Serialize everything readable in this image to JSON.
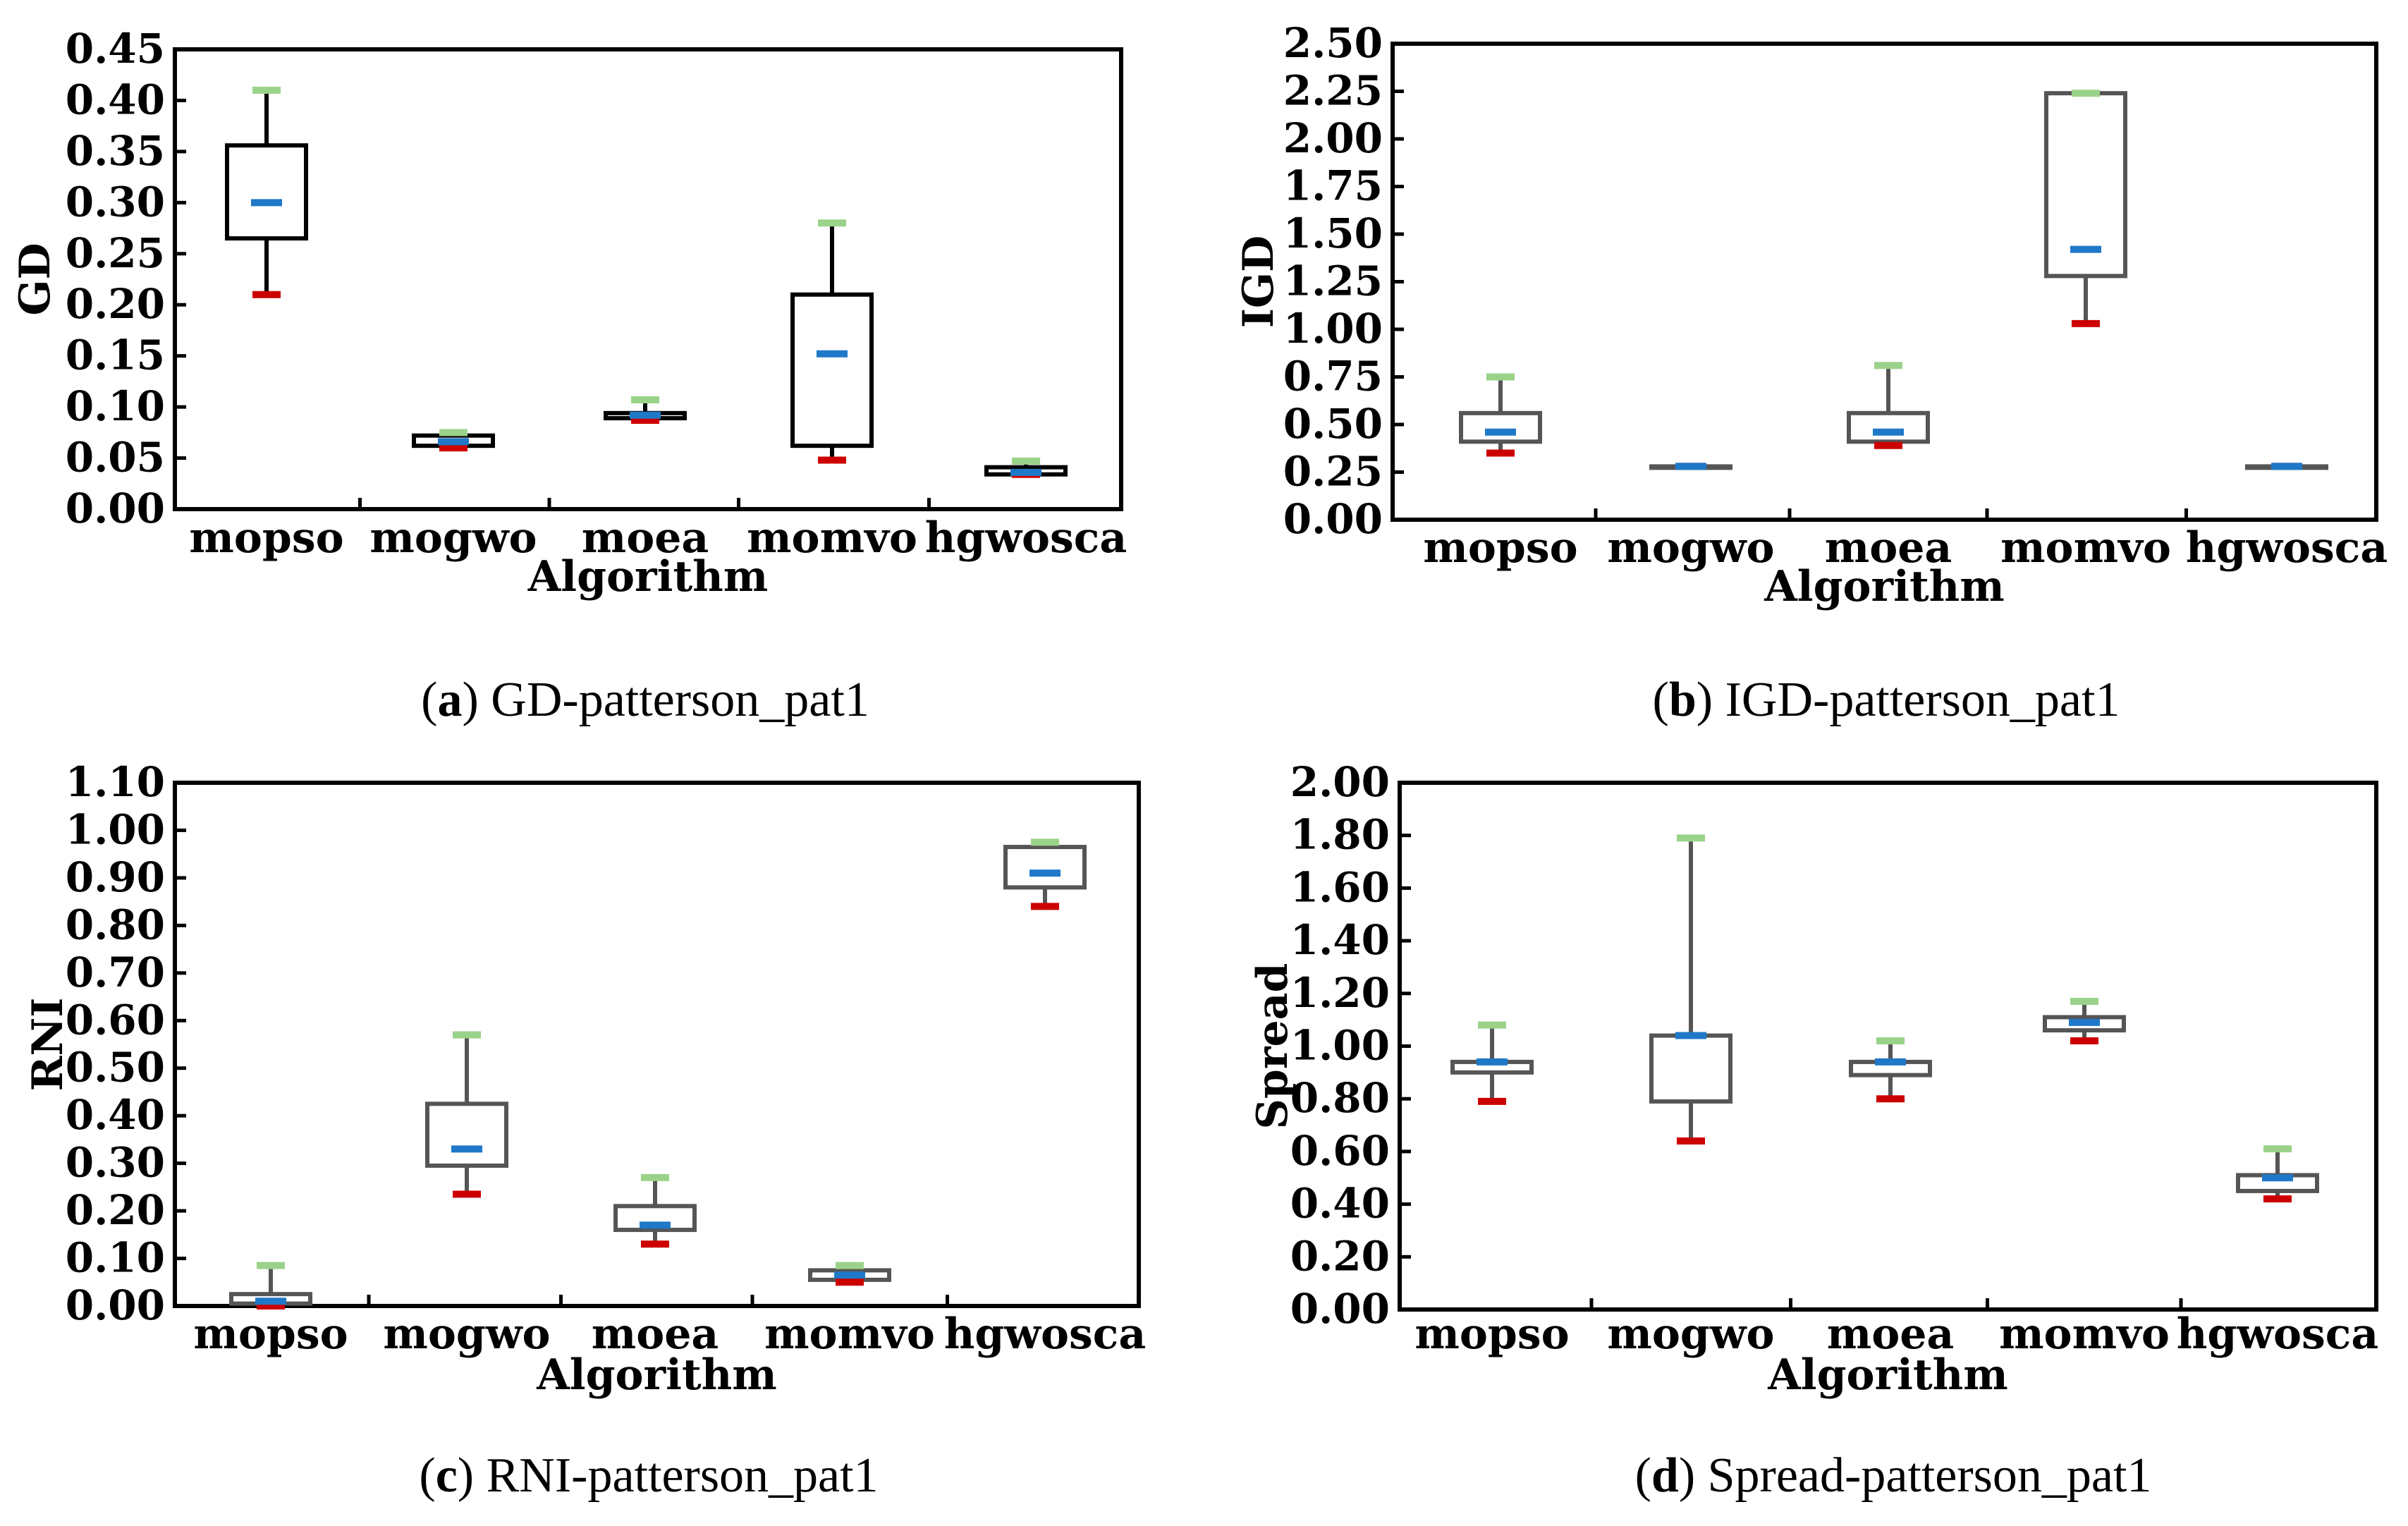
{
  "colors": {
    "median": "#1f78c8",
    "max_whisker": "#9bd28a",
    "min_whisker": "#cc0000",
    "box_dark": "#000000",
    "box_grey": "#555555"
  },
  "chart_data": [
    {
      "type": "box",
      "id": "a",
      "caption_label": "a",
      "caption_text": "GD-patterson_pat1",
      "ylabel": "GD",
      "xlabel": "Algorithm",
      "ylim": [
        0,
        0.45
      ],
      "yticks": [
        "0.00",
        "0.05",
        "0.10",
        "0.15",
        "0.20",
        "0.25",
        "0.30",
        "0.35",
        "0.40",
        "0.45"
      ],
      "categories": [
        "mopso",
        "mogwo",
        "moea",
        "momvo",
        "hgwosca"
      ],
      "series": [
        {
          "name": "mopso",
          "min": 0.21,
          "q1": 0.265,
          "median": 0.3,
          "q3": 0.356,
          "max": 0.41
        },
        {
          "name": "mogwo",
          "min": 0.06,
          "q1": 0.062,
          "median": 0.066,
          "q3": 0.072,
          "max": 0.075
        },
        {
          "name": "moea",
          "min": 0.087,
          "q1": 0.089,
          "median": 0.092,
          "q3": 0.094,
          "max": 0.107
        },
        {
          "name": "momvo",
          "min": 0.048,
          "q1": 0.062,
          "median": 0.152,
          "q3": 0.21,
          "max": 0.28
        },
        {
          "name": "hgwosca",
          "min": 0.034,
          "q1": 0.034,
          "median": 0.036,
          "q3": 0.041,
          "max": 0.047
        }
      ]
    },
    {
      "type": "box",
      "id": "b",
      "caption_label": "b",
      "caption_text": "IGD-patterson_pat1",
      "ylabel": "IGD",
      "xlabel": "Algorithm",
      "ylim": [
        0,
        2.5
      ],
      "yticks": [
        "0.00",
        "0.25",
        "0.50",
        "0.75",
        "1.00",
        "1.25",
        "1.50",
        "1.75",
        "2.00",
        "2.25",
        "2.50"
      ],
      "categories": [
        "mopso",
        "mogwo",
        "moea",
        "momvo",
        "hgwosca"
      ],
      "series": [
        {
          "name": "mopso",
          "min": 0.35,
          "q1": 0.41,
          "median": 0.46,
          "q3": 0.56,
          "max": 0.75
        },
        {
          "name": "mogwo",
          "min": 0.28,
          "q1": 0.28,
          "median": 0.28,
          "q3": 0.28,
          "max": 0.28
        },
        {
          "name": "moea",
          "min": 0.39,
          "q1": 0.41,
          "median": 0.46,
          "q3": 0.56,
          "max": 0.81
        },
        {
          "name": "momvo",
          "min": 1.03,
          "q1": 1.28,
          "median": 1.42,
          "q3": 2.24,
          "max": 2.24
        },
        {
          "name": "hgwosca",
          "min": 0.28,
          "q1": 0.28,
          "median": 0.28,
          "q3": 0.28,
          "max": 0.28
        }
      ]
    },
    {
      "type": "box",
      "id": "c",
      "caption_label": "c",
      "caption_text": "RNI-patterson_pat1",
      "ylabel": "RNI",
      "xlabel": "Algorithm",
      "ylim": [
        0,
        1.1
      ],
      "yticks": [
        "0.00",
        "0.10",
        "0.20",
        "0.30",
        "0.40",
        "0.50",
        "0.60",
        "0.70",
        "0.80",
        "0.90",
        "1.00",
        "1.10"
      ],
      "categories": [
        "mopso",
        "mogwo",
        "moea",
        "momvo",
        "hgwosca"
      ],
      "series": [
        {
          "name": "mopso",
          "min": 0.0,
          "q1": 0.005,
          "median": 0.01,
          "q3": 0.025,
          "max": 0.085
        },
        {
          "name": "mogwo",
          "min": 0.235,
          "q1": 0.295,
          "median": 0.33,
          "q3": 0.425,
          "max": 0.57
        },
        {
          "name": "moea",
          "min": 0.13,
          "q1": 0.16,
          "median": 0.17,
          "q3": 0.21,
          "max": 0.27
        },
        {
          "name": "momvo",
          "min": 0.05,
          "q1": 0.055,
          "median": 0.065,
          "q3": 0.075,
          "max": 0.085
        },
        {
          "name": "hgwosca",
          "min": 0.84,
          "q1": 0.88,
          "median": 0.91,
          "q3": 0.965,
          "max": 0.975
        }
      ]
    },
    {
      "type": "box",
      "id": "d",
      "caption_label": "d",
      "caption_text": "Spread-patterson_pat1",
      "ylabel": "Spread",
      "xlabel": "Algorithm",
      "ylim": [
        0,
        2.0
      ],
      "yticks": [
        "0.00",
        "0.20",
        "0.40",
        "0.60",
        "0.80",
        "1.00",
        "1.20",
        "1.40",
        "1.60",
        "1.80",
        "2.00"
      ],
      "categories": [
        "mopso",
        "mogwo",
        "moea",
        "momvo",
        "hgwosca"
      ],
      "series": [
        {
          "name": "mopso",
          "min": 0.79,
          "q1": 0.9,
          "median": 0.94,
          "q3": 0.94,
          "max": 1.08
        },
        {
          "name": "mogwo",
          "min": 0.64,
          "q1": 0.79,
          "median": 1.04,
          "q3": 1.04,
          "max": 1.79
        },
        {
          "name": "moea",
          "min": 0.8,
          "q1": 0.89,
          "median": 0.94,
          "q3": 0.94,
          "max": 1.02
        },
        {
          "name": "momvo",
          "min": 1.02,
          "q1": 1.06,
          "median": 1.09,
          "q3": 1.11,
          "max": 1.17
        },
        {
          "name": "hgwosca",
          "min": 0.42,
          "q1": 0.45,
          "median": 0.5,
          "q3": 0.51,
          "max": 0.61
        }
      ]
    }
  ]
}
